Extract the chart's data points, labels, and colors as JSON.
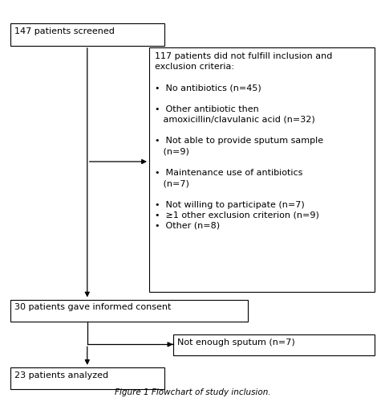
{
  "title": "Figure 1 Flowchart of study inclusion.",
  "box1_text": "147 patients screened",
  "box2_text": "117 patients did not fulfill inclusion and\nexclusion criteria:\n\n•  No antibiotics (n=45)\n\n•  Other antibiotic then\n   amoxicillin/clavulanic acid (n=32)\n\n•  Not able to provide sputum sample\n   (n=9)\n\n•  Maintenance use of antibiotics\n   (n=7)\n\n•  Not willing to participate (n=7)\n•  ≥1 other exclusion criterion (n=9)\n•  Other (n=8)",
  "box3_text": "30 patients gave informed consent",
  "box4_text": "Not enough sputum (n=7)",
  "box5_text": "23 patients analyzed",
  "box_facecolor": "#ffffff",
  "box_edgecolor": "#000000",
  "arrow_color": "#000000",
  "fontsize": 8.0,
  "title_fontsize": 7.5,
  "bg_color": "#ffffff"
}
